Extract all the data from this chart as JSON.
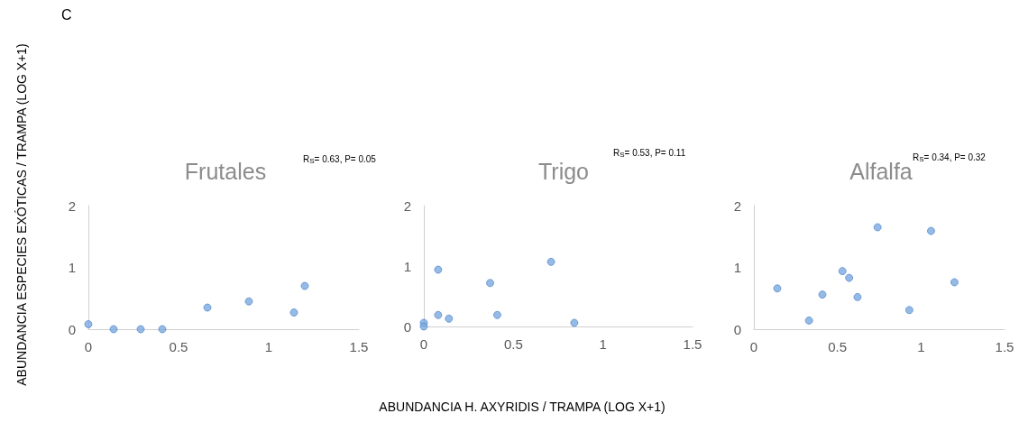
{
  "chart_data": [
    {
      "type": "scatter",
      "title": "Frutales",
      "ylabel": "ABUNDANCIA ESPECIES EXÓTICAS / TRAMPA (LOG X+1)",
      "annotations": [
        "C",
        "R$_{S}$= 0.63, P= 0.05"
      ],
      "xlim": [
        0,
        1.5
      ],
      "xticks": [
        0,
        0.5,
        1,
        1.5
      ],
      "ylim": [
        0,
        2
      ],
      "yticks": [
        0,
        1,
        2
      ],
      "grid": false,
      "marker": "circle",
      "series": [
        {
          "color": "#7aa9de",
          "x": [
            0,
            0.14,
            0.29,
            0.41,
            0.66,
            0.89,
            1.14,
            1.2
          ],
          "values": [
            0.08,
            0,
            0,
            0,
            0.35,
            0.45,
            0.27,
            0.7
          ]
        }
      ]
    },
    {
      "type": "scatter",
      "title": "Trigo",
      "xlabel": "ABUNDANCIA H. AXYRIDIS / TRAMPA (LOG X+1)",
      "annotations": [
        "R$_{S}$= 0.53, P= 0.11"
      ],
      "xlim": [
        0,
        1.5
      ],
      "xticks": [
        0,
        0.5,
        1,
        1.5
      ],
      "ylim": [
        0,
        2
      ],
      "yticks": [
        0,
        1,
        2
      ],
      "grid": false,
      "marker": "circle",
      "series": [
        {
          "color": "#7aa9de",
          "x": [
            0,
            0,
            0.08,
            0.08,
            0.14,
            0.37,
            0.41,
            0.71,
            0.84
          ],
          "values": [
            0.06,
            0,
            0.94,
            0.19,
            0.13,
            0.72,
            0.19,
            1.07,
            0.06
          ]
        }
      ]
    },
    {
      "type": "scatter",
      "title": "Alfalfa",
      "annotations": [
        "R$_{S}$= 0.34, P= 0.32"
      ],
      "xlim": [
        0,
        1.5
      ],
      "xticks": [
        0,
        0.5,
        1,
        1.5
      ],
      "ylim": [
        0,
        2
      ],
      "yticks": [
        0,
        1,
        2
      ],
      "grid": false,
      "marker": "circle",
      "series": [
        {
          "color": "#7aa9de",
          "x": [
            0.14,
            0.33,
            0.41,
            0.53,
            0.57,
            0.62,
            0.74,
            0.93,
            1.06,
            1.2
          ],
          "values": [
            0.66,
            0.14,
            0.56,
            0.94,
            0.83,
            0.52,
            1.65,
            0.31,
            1.59,
            0.76
          ]
        }
      ]
    }
  ]
}
